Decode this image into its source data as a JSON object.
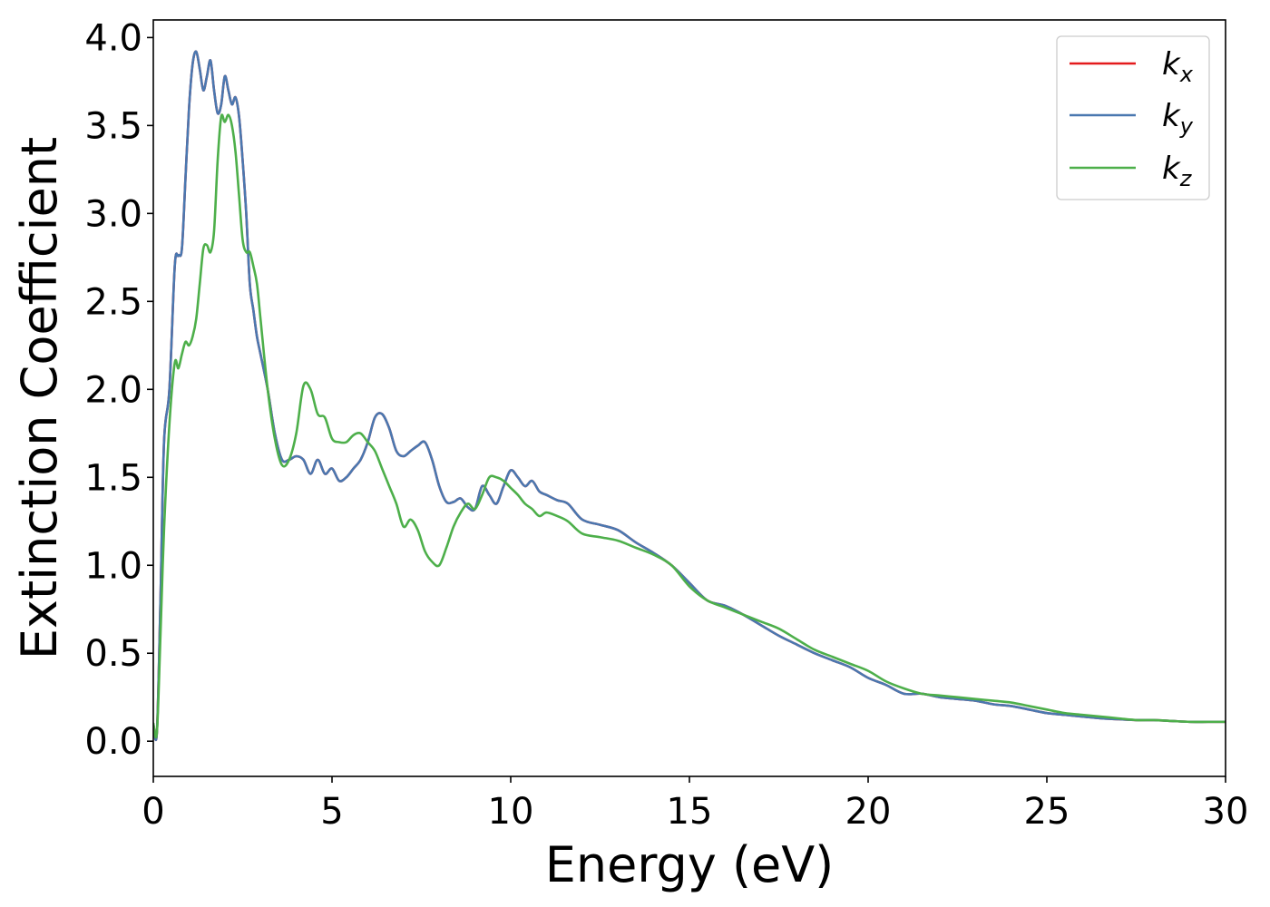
{
  "chart_data": {
    "type": "line",
    "title": "",
    "xlabel": "Energy (eV)",
    "ylabel": "Extinction Coefficient",
    "xlim": [
      0,
      30
    ],
    "ylim": [
      -0.2,
      4.1
    ],
    "xticks": [
      0,
      5,
      10,
      15,
      20,
      25,
      30
    ],
    "xtick_labels": [
      "0",
      "5",
      "10",
      "15",
      "20",
      "25",
      "30"
    ],
    "yticks": [
      0.0,
      0.5,
      1.0,
      1.5,
      2.0,
      2.5,
      3.0,
      3.5,
      4.0
    ],
    "ytick_labels": [
      "0.0",
      "0.5",
      "1.0",
      "1.5",
      "2.0",
      "2.5",
      "3.0",
      "3.5",
      "4.0"
    ],
    "grid": false,
    "legend_position": "top-right",
    "series": [
      {
        "name": "k_x",
        "label_main": "k",
        "label_sub": "x",
        "color": "#e41a1c",
        "x": [
          0,
          0.1,
          0.2,
          0.3,
          0.45,
          0.6,
          0.7,
          0.8,
          0.9,
          1.0,
          1.1,
          1.2,
          1.3,
          1.4,
          1.5,
          1.6,
          1.7,
          1.8,
          1.9,
          2.0,
          2.1,
          2.2,
          2.3,
          2.4,
          2.5,
          2.6,
          2.7,
          2.8,
          2.9,
          3.0,
          3.2,
          3.4,
          3.6,
          3.8,
          4.0,
          4.2,
          4.4,
          4.6,
          4.8,
          5.0,
          5.2,
          5.4,
          5.6,
          5.8,
          6.0,
          6.2,
          6.4,
          6.6,
          6.8,
          7.0,
          7.2,
          7.4,
          7.6,
          7.8,
          8.0,
          8.2,
          8.4,
          8.6,
          8.8,
          9.0,
          9.2,
          9.4,
          9.6,
          9.8,
          10.0,
          10.2,
          10.4,
          10.6,
          10.8,
          11.0,
          11.3,
          11.6,
          12.0,
          12.5,
          13.0,
          13.5,
          14.0,
          14.5,
          15.0,
          15.5,
          16.0,
          16.5,
          17.0,
          17.5,
          18.0,
          18.5,
          19.0,
          19.5,
          20.0,
          20.5,
          21.0,
          21.5,
          22.0,
          22.5,
          23.0,
          23.5,
          24.0,
          24.5,
          25.0,
          25.5,
          26.0,
          26.5,
          27.0,
          27.5,
          28.0,
          28.5,
          29.0,
          29.5,
          30.0
        ],
        "y": [
          0.1,
          0.05,
          0.8,
          1.7,
          2.0,
          2.7,
          2.76,
          2.8,
          3.2,
          3.6,
          3.85,
          3.92,
          3.82,
          3.7,
          3.78,
          3.87,
          3.7,
          3.57,
          3.62,
          3.78,
          3.7,
          3.62,
          3.66,
          3.55,
          3.3,
          3.0,
          2.6,
          2.45,
          2.3,
          2.2,
          2.0,
          1.75,
          1.6,
          1.6,
          1.62,
          1.6,
          1.52,
          1.6,
          1.52,
          1.55,
          1.48,
          1.5,
          1.55,
          1.6,
          1.7,
          1.84,
          1.86,
          1.78,
          1.65,
          1.62,
          1.65,
          1.68,
          1.7,
          1.6,
          1.45,
          1.36,
          1.36,
          1.38,
          1.33,
          1.32,
          1.45,
          1.4,
          1.35,
          1.45,
          1.54,
          1.5,
          1.45,
          1.48,
          1.42,
          1.4,
          1.37,
          1.35,
          1.26,
          1.23,
          1.2,
          1.13,
          1.07,
          1.0,
          0.9,
          0.8,
          0.77,
          0.72,
          0.66,
          0.6,
          0.55,
          0.5,
          0.46,
          0.42,
          0.36,
          0.32,
          0.27,
          0.27,
          0.25,
          0.24,
          0.23,
          0.21,
          0.2,
          0.18,
          0.16,
          0.15,
          0.14,
          0.13,
          0.125,
          0.12,
          0.12,
          0.115,
          0.11,
          0.11,
          0.11
        ]
      },
      {
        "name": "k_y",
        "label_main": "k",
        "label_sub": "y",
        "color": "#4a78b0",
        "x": [
          0,
          0.1,
          0.2,
          0.3,
          0.45,
          0.6,
          0.7,
          0.8,
          0.9,
          1.0,
          1.1,
          1.2,
          1.3,
          1.4,
          1.5,
          1.6,
          1.7,
          1.8,
          1.9,
          2.0,
          2.1,
          2.2,
          2.3,
          2.4,
          2.5,
          2.6,
          2.7,
          2.8,
          2.9,
          3.0,
          3.2,
          3.4,
          3.6,
          3.8,
          4.0,
          4.2,
          4.4,
          4.6,
          4.8,
          5.0,
          5.2,
          5.4,
          5.6,
          5.8,
          6.0,
          6.2,
          6.4,
          6.6,
          6.8,
          7.0,
          7.2,
          7.4,
          7.6,
          7.8,
          8.0,
          8.2,
          8.4,
          8.6,
          8.8,
          9.0,
          9.2,
          9.4,
          9.6,
          9.8,
          10.0,
          10.2,
          10.4,
          10.6,
          10.8,
          11.0,
          11.3,
          11.6,
          12.0,
          12.5,
          13.0,
          13.5,
          14.0,
          14.5,
          15.0,
          15.5,
          16.0,
          16.5,
          17.0,
          17.5,
          18.0,
          18.5,
          19.0,
          19.5,
          20.0,
          20.5,
          21.0,
          21.5,
          22.0,
          22.5,
          23.0,
          23.5,
          24.0,
          24.5,
          25.0,
          25.5,
          26.0,
          26.5,
          27.0,
          27.5,
          28.0,
          28.5,
          29.0,
          29.5,
          30.0
        ],
        "y": [
          0.1,
          0.05,
          0.8,
          1.7,
          2.0,
          2.7,
          2.76,
          2.8,
          3.2,
          3.6,
          3.85,
          3.92,
          3.82,
          3.7,
          3.78,
          3.87,
          3.7,
          3.57,
          3.62,
          3.78,
          3.7,
          3.62,
          3.66,
          3.55,
          3.3,
          3.0,
          2.6,
          2.45,
          2.3,
          2.2,
          2.0,
          1.75,
          1.6,
          1.6,
          1.62,
          1.6,
          1.52,
          1.6,
          1.52,
          1.55,
          1.48,
          1.5,
          1.55,
          1.6,
          1.7,
          1.84,
          1.86,
          1.78,
          1.65,
          1.62,
          1.65,
          1.68,
          1.7,
          1.6,
          1.45,
          1.36,
          1.36,
          1.38,
          1.33,
          1.32,
          1.45,
          1.4,
          1.35,
          1.45,
          1.54,
          1.5,
          1.45,
          1.48,
          1.42,
          1.4,
          1.37,
          1.35,
          1.26,
          1.23,
          1.2,
          1.13,
          1.07,
          1.0,
          0.9,
          0.8,
          0.77,
          0.72,
          0.66,
          0.6,
          0.55,
          0.5,
          0.46,
          0.42,
          0.36,
          0.32,
          0.27,
          0.27,
          0.25,
          0.24,
          0.23,
          0.21,
          0.2,
          0.18,
          0.16,
          0.15,
          0.14,
          0.13,
          0.125,
          0.12,
          0.12,
          0.115,
          0.11,
          0.11,
          0.11
        ]
      },
      {
        "name": "k_z",
        "label_main": "k",
        "label_sub": "z",
        "color": "#4daf4a",
        "x": [
          0,
          0.1,
          0.2,
          0.3,
          0.45,
          0.6,
          0.7,
          0.8,
          0.9,
          1.0,
          1.1,
          1.2,
          1.3,
          1.4,
          1.5,
          1.6,
          1.7,
          1.8,
          1.9,
          2.0,
          2.1,
          2.2,
          2.3,
          2.4,
          2.5,
          2.6,
          2.7,
          2.8,
          2.9,
          3.0,
          3.2,
          3.4,
          3.6,
          3.8,
          4.0,
          4.2,
          4.4,
          4.6,
          4.8,
          5.0,
          5.2,
          5.4,
          5.6,
          5.8,
          6.0,
          6.2,
          6.4,
          6.6,
          6.8,
          7.0,
          7.2,
          7.4,
          7.6,
          7.8,
          8.0,
          8.2,
          8.4,
          8.6,
          8.8,
          9.0,
          9.2,
          9.4,
          9.6,
          9.8,
          10.0,
          10.2,
          10.4,
          10.6,
          10.8,
          11.0,
          11.3,
          11.6,
          12.0,
          12.5,
          13.0,
          13.5,
          14.0,
          14.5,
          15.0,
          15.5,
          16.0,
          16.5,
          17.0,
          17.5,
          18.0,
          18.5,
          19.0,
          19.5,
          20.0,
          20.5,
          21.0,
          21.5,
          22.0,
          22.5,
          23.0,
          23.5,
          24.0,
          24.5,
          25.0,
          25.5,
          26.0,
          26.5,
          27.0,
          27.5,
          28.0,
          28.5,
          29.0,
          29.5,
          30.0
        ],
        "y": [
          0.1,
          0.05,
          0.6,
          1.2,
          1.8,
          2.15,
          2.12,
          2.2,
          2.27,
          2.25,
          2.3,
          2.4,
          2.6,
          2.8,
          2.82,
          2.78,
          2.9,
          3.3,
          3.55,
          3.52,
          3.56,
          3.5,
          3.35,
          3.1,
          2.85,
          2.78,
          2.78,
          2.7,
          2.6,
          2.4,
          2.0,
          1.72,
          1.57,
          1.6,
          1.75,
          2.02,
          2.0,
          1.86,
          1.84,
          1.72,
          1.7,
          1.7,
          1.74,
          1.75,
          1.7,
          1.65,
          1.55,
          1.45,
          1.35,
          1.22,
          1.26,
          1.2,
          1.08,
          1.02,
          1.0,
          1.1,
          1.22,
          1.3,
          1.35,
          1.32,
          1.4,
          1.5,
          1.5,
          1.48,
          1.44,
          1.4,
          1.35,
          1.32,
          1.28,
          1.3,
          1.28,
          1.25,
          1.18,
          1.16,
          1.14,
          1.1,
          1.06,
          1.0,
          0.88,
          0.8,
          0.76,
          0.72,
          0.68,
          0.64,
          0.58,
          0.52,
          0.48,
          0.44,
          0.4,
          0.34,
          0.3,
          0.27,
          0.26,
          0.25,
          0.24,
          0.23,
          0.22,
          0.2,
          0.18,
          0.16,
          0.15,
          0.14,
          0.13,
          0.12,
          0.12,
          0.115,
          0.11,
          0.11,
          0.11
        ]
      }
    ]
  }
}
